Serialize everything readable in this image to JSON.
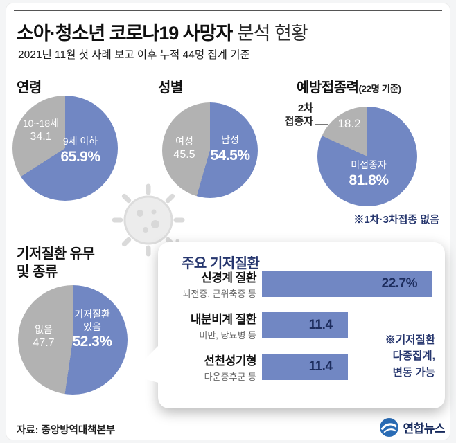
{
  "header": {
    "title_bold": "소아·청소년 코로나19 사망자",
    "title_light": "분석 현황",
    "subtitle": "2021년 11월 첫 사례 보고 이후 누적 44명 집계 기준"
  },
  "colors": {
    "pie_blue": "#7187c3",
    "pie_gray": "#b2b2b2",
    "navy": "#26366e",
    "logo_blue": "#2a6cb5"
  },
  "chart_data": [
    {
      "type": "pie",
      "title": "연령",
      "labels": [
        "9세 이하",
        "10~18세"
      ],
      "values": [
        65.9,
        34.1
      ],
      "display": [
        "65.9%",
        "34.1"
      ],
      "colors": [
        "#7187c3",
        "#b2b2b2"
      ],
      "legend_position": "inside"
    },
    {
      "type": "pie",
      "title": "성별",
      "labels": [
        "남성",
        "여성"
      ],
      "values": [
        54.5,
        45.5
      ],
      "display": [
        "54.5%",
        "45.5"
      ],
      "colors": [
        "#7187c3",
        "#b2b2b2"
      ],
      "legend_position": "inside"
    },
    {
      "type": "pie",
      "title": "예방접종력",
      "title_note": "(22명 기준)",
      "labels": [
        "미접종자",
        "2차 접종자"
      ],
      "ext_label_lines": [
        "2차",
        "접종자"
      ],
      "values": [
        81.8,
        18.2
      ],
      "display": [
        "81.8%",
        "18.2"
      ],
      "colors": [
        "#7187c3",
        "#b2b2b2"
      ],
      "footnote": "※1차·3차접종 없음",
      "legend_position": "inside"
    },
    {
      "type": "pie",
      "title": "기저질환 유무 및 종류",
      "title_lines": [
        "기저질환 유무",
        "및 종류"
      ],
      "labels": [
        "기저질환 있음",
        "없음"
      ],
      "label_lines": [
        "기저질환",
        "있음"
      ],
      "values": [
        52.3,
        47.7
      ],
      "display": [
        "52.3%",
        "47.7"
      ],
      "colors": [
        "#7187c3",
        "#b2b2b2"
      ],
      "legend_position": "inside"
    },
    {
      "type": "bar",
      "title": "주요 기저질환",
      "orientation": "horizontal",
      "categories": [
        "신경계 질환",
        "내분비계 질환",
        "선천성기형"
      ],
      "category_subs": [
        "뇌전증, 근위축증 등",
        "비만, 당뇨병 등",
        "다운증후군 등"
      ],
      "values": [
        22.7,
        11.4,
        11.4
      ],
      "display": [
        "22.7%",
        "11.4",
        "11.4"
      ],
      "bar_color": "#7187c3",
      "value_color": "#1d2d5e",
      "note_lines": [
        "※기저질환",
        "다중집계,",
        "변동 가능"
      ]
    }
  ],
  "footer": {
    "source": "자료: 중앙방역대책본부",
    "logo_text": "연합뉴스"
  }
}
